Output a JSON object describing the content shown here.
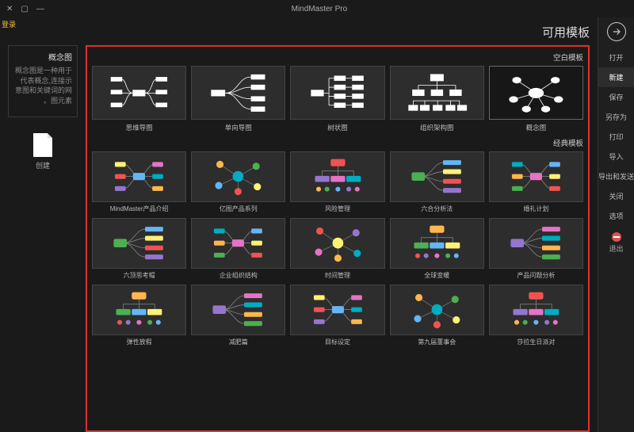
{
  "titlebar": {
    "app": "MindMaster Pro"
  },
  "login": "登录",
  "rightbar": {
    "items": [
      {
        "label": "打开"
      },
      {
        "label": "新建",
        "active": true
      },
      {
        "label": "保存"
      },
      {
        "label": "另存为"
      },
      {
        "label": "打印"
      },
      {
        "label": "导入"
      },
      {
        "label": "导出和发送"
      },
      {
        "label": "关闭"
      },
      {
        "label": "选项"
      }
    ],
    "exit": "退出"
  },
  "page_title": "可用模板",
  "info": {
    "title": "概念图",
    "desc": "概念图是一种用于代表概念,连接示意图和关键词的网图元素。"
  },
  "blank_doc": "创建",
  "sections": {
    "blank": "空白模板",
    "classic": "经典模板"
  },
  "blank_templates": [
    {
      "label": "概念图"
    },
    {
      "label": "组织架构图"
    },
    {
      "label": "树状图"
    },
    {
      "label": "单向导图"
    },
    {
      "label": "思维导图"
    }
  ],
  "classic_templates": [
    {
      "label": "婚礼计划"
    },
    {
      "label": "六合分析法"
    },
    {
      "label": "风险管理"
    },
    {
      "label": "亿图产品系列"
    },
    {
      "label": "MindMaster产品介绍"
    },
    {
      "label": "产品问题分析"
    },
    {
      "label": "全球变暖"
    },
    {
      "label": "时间管理"
    },
    {
      "label": "企业组织结构"
    },
    {
      "label": "六顶思考帽"
    },
    {
      "label": "莎拉生日派对"
    },
    {
      "label": "第九届董事会"
    },
    {
      "label": "目标设定"
    },
    {
      "label": "减肥篇"
    },
    {
      "label": "弹性放假"
    }
  ],
  "palette": {
    "pinks": [
      "#e673c6",
      "#d24ba8"
    ],
    "cyans": [
      "#26c6da",
      "#00acc1"
    ],
    "oranges": [
      "#ffb74d",
      "#ff9800"
    ],
    "greens": [
      "#81c784",
      "#4caf50"
    ],
    "blues": [
      "#64b5f6",
      "#1e88e5"
    ],
    "yellows": [
      "#fff176"
    ],
    "reds": [
      "#ef5350"
    ],
    "purples": [
      "#9575cd"
    ]
  }
}
